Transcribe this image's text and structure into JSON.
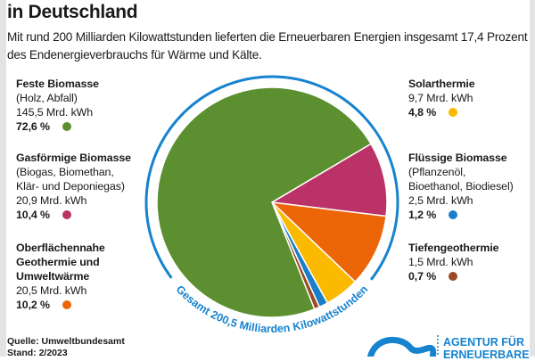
{
  "header": {
    "title": "in Deutschland",
    "subtitle": "Mit rund 200 Milliarden Kilowattstunden lieferten die Erneuerbaren Energien insgesamt 17,4 Prozent des Endenergieverbrauchs für Wärme und Kälte."
  },
  "chart_data": {
    "type": "pie",
    "total_label": "Gesamt 200,5 Milliarden Kilowattstunden",
    "unit": "Mrd. kWh",
    "slices": [
      {
        "name": "Gasförmige Biomasse",
        "desc": "(Biogas, Biomethan,\nKlär- und Deponiegas)",
        "value": 20.9,
        "value_label": "20,9 Mrd. kWh",
        "percent": 10.4,
        "percent_label": "10,4 %",
        "color": "#bb3366"
      },
      {
        "name": "Oberflächennahe\nGeothermie und\nUmweltwärme",
        "desc": "",
        "value": 20.5,
        "value_label": "20,5 Mrd. kWh",
        "percent": 10.2,
        "percent_label": "10,2 %",
        "color": "#ec6608"
      },
      {
        "name": "Solarthermie",
        "desc": "",
        "value": 9.7,
        "value_label": "9,7 Mrd. kWh",
        "percent": 4.8,
        "percent_label": "4,8 %",
        "color": "#fbba00"
      },
      {
        "name": "Flüssige Biomasse",
        "desc": "(Pflanzenöl,\nBioethanol, Biodiesel)",
        "value": 2.5,
        "value_label": "2,5 Mrd. kWh",
        "percent": 1.2,
        "percent_label": "1,2 %",
        "color": "#1a7fc8"
      },
      {
        "name": "Tiefengeothermie",
        "desc": "",
        "value": 1.5,
        "value_label": "1,5 Mrd. kWh",
        "percent": 0.7,
        "percent_label": "0,7 %",
        "color": "#9b4a25"
      },
      {
        "name": "Feste Biomasse",
        "desc": "(Holz, Abfall)",
        "value": 145.5,
        "value_label": "145,5 Mrd. kWh",
        "percent": 72.6,
        "percent_label": "72,6 %",
        "color": "#5b8f2f"
      }
    ],
    "ring_color": "#1683cf"
  },
  "footer": {
    "source": "Quelle: Umweltbundesamt",
    "date": "Stand:  2/2023",
    "logo_line1": "AGENTUR FÜR",
    "logo_line2": "ERNEUERBARE"
  }
}
